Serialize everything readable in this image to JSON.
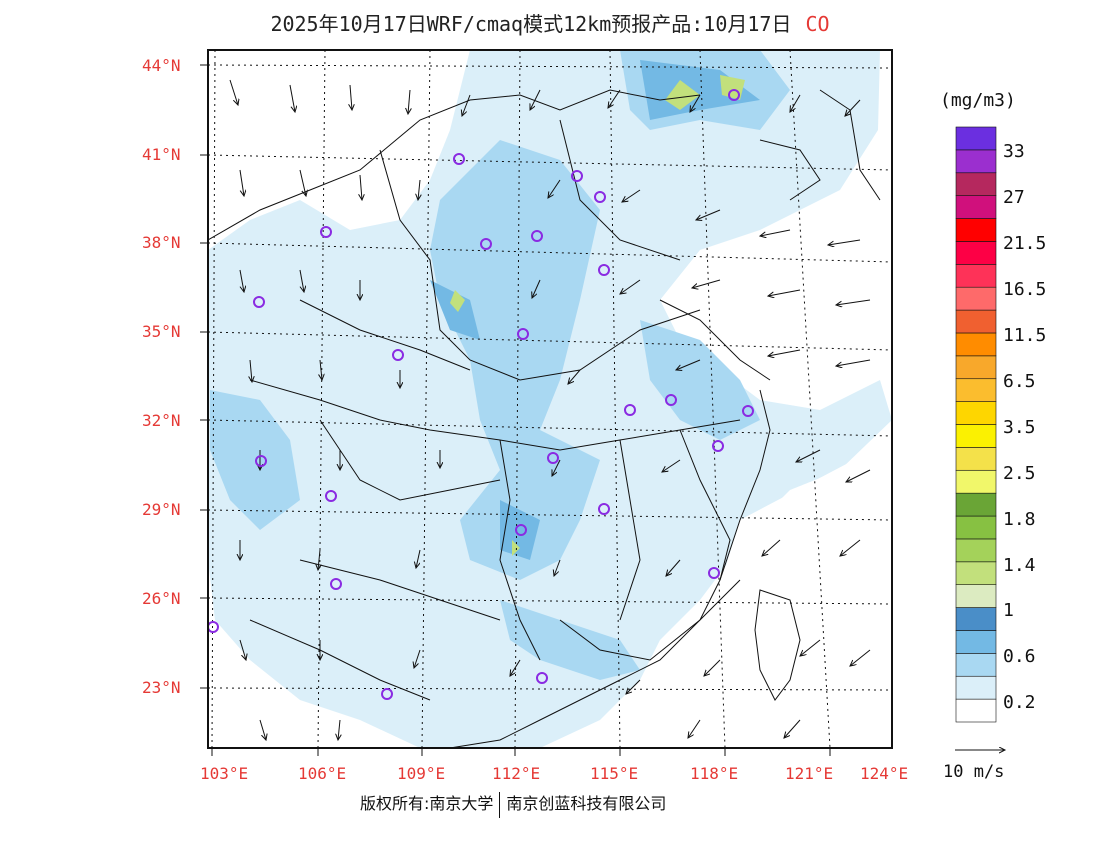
{
  "title": "2025年10月17日WRF/cmaq模式12km预报产品:10月17日",
  "species": "CO",
  "unit": "(mg/m3)",
  "lat_labels": [
    "44°N",
    "41°N",
    "38°N",
    "35°N",
    "32°N",
    "29°N",
    "26°N",
    "23°N"
  ],
  "lon_labels": [
    "103°E",
    "106°E",
    "109°E",
    "112°E",
    "115°E",
    "118°E",
    "121°E",
    "124°E"
  ],
  "colorbar": {
    "colors": [
      "#ffffff",
      "#dbeff9",
      "#a9d8f2",
      "#73b9e4",
      "#4a8ec8",
      "#dcebc1",
      "#c2e07c",
      "#a4d25a",
      "#87c142",
      "#6aa536",
      "#f1f76a",
      "#f4e14a",
      "#fbf101",
      "#fed600",
      "#fbbd2e",
      "#f8a82b",
      "#ff8c00",
      "#f06030",
      "#fe6a6a",
      "#fe3258",
      "#fd0045",
      "#ff0000",
      "#d0107c",
      "#b5285e",
      "#9b2fcf",
      "#6b2fe0"
    ],
    "labels": [
      "0.2",
      "0.6",
      "1",
      "1.4",
      "1.8",
      "2.5",
      "3.5",
      "6.5",
      "11.5",
      "16.5",
      "21.5",
      "27",
      "33"
    ]
  },
  "vector_reference": "10 m/s",
  "footer": {
    "left": "版权所有:南京大学",
    "right": "南京创蓝科技有限公司"
  },
  "sites": 27
}
